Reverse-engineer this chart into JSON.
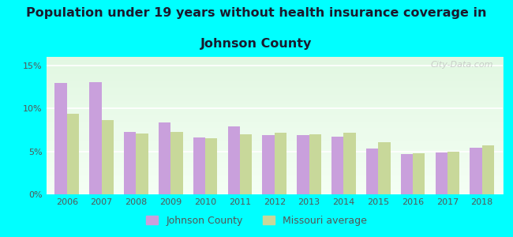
{
  "title_line1": "Population under 19 years without health insurance coverage in",
  "title_line2": "Johnson County",
  "years": [
    2006,
    2007,
    2008,
    2009,
    2010,
    2011,
    2012,
    2013,
    2014,
    2015,
    2016,
    2017,
    2018
  ],
  "johnson_county": [
    13.0,
    13.1,
    7.3,
    8.4,
    6.6,
    7.9,
    6.9,
    6.9,
    6.7,
    5.3,
    4.7,
    4.9,
    5.4
  ],
  "missouri_avg": [
    9.4,
    8.6,
    7.1,
    7.3,
    6.5,
    7.0,
    7.2,
    7.0,
    7.2,
    6.1,
    4.8,
    5.0,
    5.7
  ],
  "johnson_color": "#c9a0dc",
  "missouri_color": "#c8d89a",
  "background_outer": "#00ffff",
  "background_inner_top": "#e8f5e8",
  "background_inner_bottom": "#f5fff5",
  "ylim": [
    0,
    16
  ],
  "yticks": [
    0,
    5,
    10,
    15
  ],
  "ytick_labels": [
    "0%",
    "5%",
    "10%",
    "15%"
  ],
  "legend_johnson": "Johnson County",
  "legend_missouri": "Missouri average",
  "title_fontsize": 11.5,
  "bar_width": 0.35,
  "tick_color": "#555555",
  "tick_fontsize": 8
}
